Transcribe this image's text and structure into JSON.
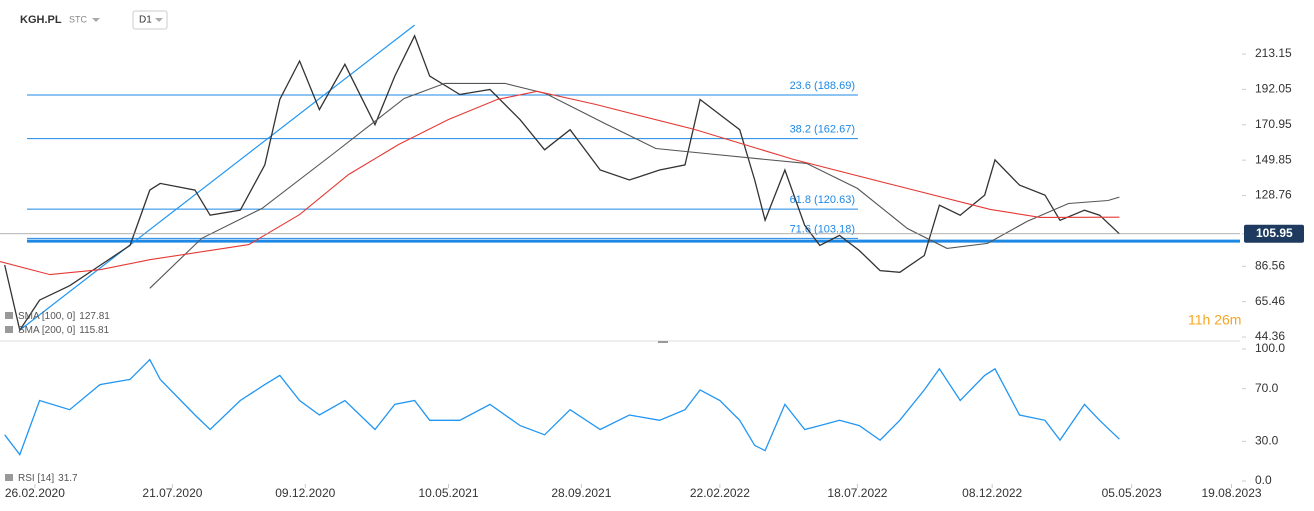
{
  "header": {
    "symbol": "KGH.PL",
    "market": "STC",
    "interval": "D1"
  },
  "countdown": "11h 26m",
  "chart_data": [
    {
      "type": "line",
      "ylim": [
        42.0,
        239.4
      ],
      "yticks": [
        44.36,
        65.46,
        86.56,
        105.95,
        128.76,
        149.85,
        170.95,
        192.05,
        213.15
      ],
      "xlim": [
        "20.01.2020",
        "28.08.2023"
      ],
      "fib_levels": [
        {
          "value": 188.69,
          "label": "23.6 (188.69)"
        },
        {
          "value": 162.67,
          "label": "38.2 (162.67)"
        },
        {
          "value": 120.63,
          "label": "61.8 (120.63)"
        },
        {
          "value": 103.18,
          "label": "71.6 (103.18)"
        }
      ],
      "support_level": 101.6,
      "trendline": {
        "x": [
          "10.02.2020",
          "04.04.2021"
        ],
        "values": [
          48.5,
          230.4
        ]
      },
      "series": [
        {
          "color": "#333333",
          "x": [
            "25.01.2020",
            "10.02.2020",
            "02.03.2020",
            "03.04.2020",
            "05.05.2020",
            "06.06.2020",
            "27.06.2020",
            "08.07.2020",
            "14.08.2020",
            "30.08.2020",
            "01.10.2020",
            "27.10.2020",
            "12.11.2020",
            "03.12.2020",
            "24.12.2020",
            "20.01.2021",
            "21.02.2021",
            "14.03.2021",
            "04.04.2021",
            "20.04.2021",
            "22.05.2021",
            "23.06.2021",
            "25.07.2021",
            "20.08.2021",
            "16.09.2021",
            "18.10.2021",
            "18.11.2021",
            "20.12.2021",
            "16.01.2022",
            "01.02.2022",
            "22.02.2022",
            "15.03.2022",
            "31.03.2022",
            "11.04.2022",
            "02.05.2022",
            "23.05.2022",
            "08.06.2022",
            "29.06.2022",
            "20.07.2022",
            "11.08.2022",
            "01.09.2022",
            "27.09.2022",
            "13.10.2022",
            "04.11.2022",
            "30.11.2022",
            "11.12.2022",
            "06.01.2023",
            "02.02.2023",
            "18.02.2023",
            "16.03.2023",
            "01.04.2023",
            "22.04.2023"
          ],
          "values": [
            87.3,
            48.5,
            66.4,
            75,
            87,
            99,
            132,
            136,
            132,
            117,
            120,
            147,
            186,
            209,
            180,
            207,
            171,
            200,
            224,
            200,
            189,
            192,
            174,
            156,
            168,
            144,
            138,
            144,
            147,
            186,
            177,
            168,
            138,
            114,
            144,
            111,
            99,
            105,
            96,
            84,
            83,
            93,
            123,
            117,
            129,
            150,
            135,
            129,
            114,
            120,
            117,
            105.95
          ]
        },
        {
          "name": "SMA [100, 0]",
          "color": "#555555",
          "x": [
            "27.06.2020",
            "21.08.2020",
            "24.10.2020",
            "08.01.2021",
            "24.03.2021",
            "06.05.2021",
            "09.07.2021",
            "21.08.2021",
            "23.10.2021",
            "16.12.2021",
            "07.02.2022",
            "02.04.2022",
            "25.05.2022",
            "18.07.2022",
            "09.09.2022",
            "21.10.2022",
            "03.12.2022",
            "14.01.2023",
            "27.02.2023",
            "10.04.2023",
            "22.04.2023"
          ],
          "values": [
            73.4,
            103.2,
            121,
            153.8,
            186.6,
            195.6,
            195.6,
            189.6,
            171.7,
            156.8,
            153.8,
            150.8,
            147.9,
            133,
            109.1,
            97.2,
            100.2,
            113.3,
            124,
            125.8,
            127.81
          ]
        },
        {
          "name": "SMA [200, 0]",
          "color": "#e53935",
          "x": [
            "20.01.2020",
            "13.03.2020",
            "06.05.2020",
            "27.06.2020",
            "10.10.2020",
            "03.12.2020",
            "24.01.2021",
            "18.03.2021",
            "10.05.2021",
            "01.07.2021",
            "12.08.2021",
            "13.10.2021",
            "26.01.2022",
            "11.05.2022",
            "23.08.2022",
            "06.12.2022",
            "28.01.2023",
            "22.04.2023"
          ],
          "values": [
            89.4,
            81.6,
            84.6,
            90.5,
            99.5,
            117.4,
            141.3,
            159.2,
            174.1,
            186.1,
            190.9,
            183.1,
            168.2,
            150.3,
            135.4,
            120.5,
            115.7,
            115.81
          ]
        }
      ]
    },
    {
      "type": "line",
      "ylim": [
        0,
        100
      ],
      "yticks": [
        {
          "value": 0,
          "label": "0.0"
        },
        {
          "value": 30,
          "label": "30.0"
        },
        {
          "value": 70,
          "label": "70.0"
        },
        {
          "value": 100,
          "label": "100.0"
        }
      ],
      "xlim": [
        "20.01.2020",
        "28.08.2023"
      ],
      "xticks": [
        "26.02.2020",
        "21.07.2020",
        "09.12.2020",
        "10.05.2021",
        "28.09.2021",
        "22.02.2022",
        "18.07.2022",
        "08.12.2022",
        "05.05.2023",
        "19.08.2023"
      ],
      "series": [
        {
          "name": "RSI [14]",
          "color": "#2196f3",
          "x": [
            "25.01.2020",
            "10.02.2020",
            "02.03.2020",
            "03.04.2020",
            "05.05.2020",
            "06.06.2020",
            "27.06.2020",
            "08.07.2020",
            "14.08.2020",
            "30.08.2020",
            "01.10.2020",
            "27.10.2020",
            "12.11.2020",
            "03.12.2020",
            "24.12.2020",
            "20.01.2021",
            "21.02.2021",
            "14.03.2021",
            "04.04.2021",
            "20.04.2021",
            "22.05.2021",
            "23.06.2021",
            "25.07.2021",
            "20.08.2021",
            "16.09.2021",
            "18.10.2021",
            "18.11.2021",
            "20.12.2021",
            "16.01.2022",
            "01.02.2022",
            "22.02.2022",
            "15.03.2022",
            "31.03.2022",
            "11.04.2022",
            "02.05.2022",
            "23.05.2022",
            "08.06.2022",
            "29.06.2022",
            "20.07.2022",
            "11.08.2022",
            "01.09.2022",
            "27.09.2022",
            "13.10.2022",
            "04.11.2022",
            "30.11.2022",
            "11.12.2022",
            "06.01.2023",
            "02.02.2023",
            "18.02.2023",
            "16.03.2023",
            "01.04.2023",
            "22.04.2023"
          ],
          "values": [
            35,
            20,
            61,
            54,
            73,
            77,
            92,
            77,
            50,
            39,
            61,
            73,
            80,
            61,
            50,
            61,
            39,
            58,
            61,
            46,
            46,
            58,
            42,
            35,
            54,
            39,
            50,
            46,
            54,
            69,
            61,
            46,
            27,
            23,
            58,
            39,
            42,
            46,
            42,
            31,
            46,
            69,
            85,
            61,
            80,
            85,
            50,
            46,
            31,
            58,
            46,
            31.7
          ]
        }
      ]
    }
  ]
}
